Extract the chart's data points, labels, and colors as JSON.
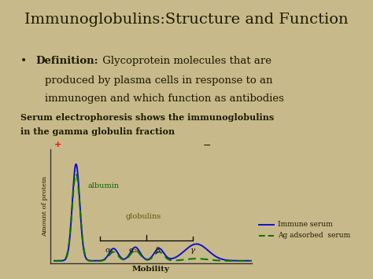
{
  "bg_color": "#c8b98a",
  "title": "Immunoglobulins:Structure and Function",
  "title_fontsize": 15,
  "title_color": "#000000",
  "bullet_bold": "Definition:",
  "bullet_rest": "  Glycoprotein molecules that are",
  "bullet_line2": "produced by plasma cells in response to an",
  "bullet_line3": "immunogen and which function as antibodies",
  "serum_text": "Serum electrophoresis shows the immunoglobulins\nin the gamma globulin fraction",
  "ylabel": "Amount of protein",
  "xlabel": "Mobility",
  "plus_label": "+",
  "minus_label": "-",
  "albumin_label": "albumin",
  "globulins_label": "globulins",
  "alpha1_label": "α₁",
  "alpha2_label": "α₂",
  "beta_label": "β",
  "gamma_label": "γ",
  "immune_serum_label": "Immune serum",
  "ag_adsorbed_label": "Ag adsorbed  serum",
  "line_color_blue": "#1010cc",
  "line_color_green": "#007700",
  "text_color": "#1a1a00"
}
